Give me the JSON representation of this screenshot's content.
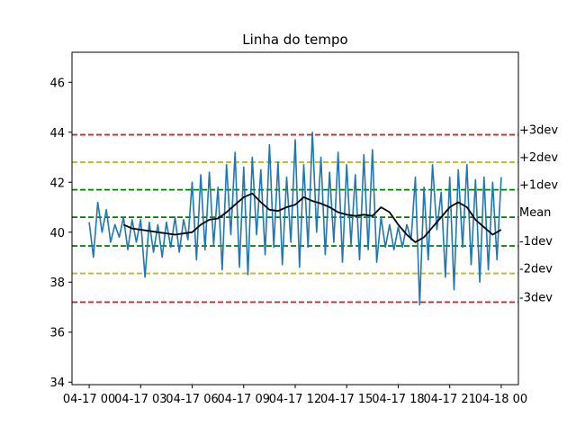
{
  "chart_data": {
    "type": "line",
    "title": "Linha do tempo",
    "xlabel": "",
    "ylabel": "",
    "ylim": [
      33.9,
      47.2
    ],
    "xlim": [
      "2024-04-16 23:00",
      "2024-04-18 01:00"
    ],
    "grid": false,
    "x_tick_labels": [
      "04-17 00",
      "04-17 03",
      "04-17 06",
      "04-17 09",
      "04-17 12",
      "04-17 15",
      "04-17 18",
      "04-17 21",
      "04-18 00"
    ],
    "x_tick_values_hours": [
      0,
      3,
      6,
      9,
      12,
      15,
      18,
      21,
      24
    ],
    "y_ticks": [
      34,
      36,
      38,
      40,
      42,
      44,
      46
    ],
    "colors": {
      "raw": "#1f77b4",
      "moving_average": "#000000",
      "band_3": "#d62728",
      "band_2": "#bcbd22",
      "band_1": "#2ca02c"
    },
    "series": [
      {
        "name": "",
        "kind": "raw",
        "x_hours": [
          0,
          0.25,
          0.5,
          0.75,
          1,
          1.25,
          1.5,
          1.75,
          2,
          2.25,
          2.5,
          2.75,
          3,
          3.25,
          3.5,
          3.75,
          4,
          4.25,
          4.5,
          4.75,
          5,
          5.25,
          5.5,
          5.75,
          6,
          6.25,
          6.5,
          6.75,
          7,
          7.25,
          7.5,
          7.75,
          8,
          8.25,
          8.5,
          8.75,
          9,
          9.25,
          9.5,
          9.75,
          10,
          10.25,
          10.5,
          10.75,
          11,
          11.25,
          11.5,
          11.75,
          12,
          12.25,
          12.5,
          12.75,
          13,
          13.25,
          13.5,
          13.75,
          14,
          14.25,
          14.5,
          14.75,
          15,
          15.25,
          15.5,
          15.75,
          16,
          16.25,
          16.5,
          16.75,
          17,
          17.25,
          17.5,
          17.75,
          18,
          18.25,
          18.5,
          18.75,
          19,
          19.25,
          19.5,
          19.75,
          20,
          20.25,
          20.5,
          20.75,
          21,
          21.25,
          21.5,
          21.75,
          22,
          22.25,
          22.5,
          22.75,
          23,
          23.25,
          23.5,
          23.75,
          24
        ],
        "values": [
          40.4,
          39.0,
          41.2,
          40.0,
          40.9,
          39.6,
          40.3,
          39.8,
          40.6,
          39.3,
          40.5,
          39.6,
          40.5,
          38.2,
          40.4,
          39.2,
          40.3,
          39.0,
          40.4,
          39.4,
          40.6,
          39.2,
          40.5,
          39.7,
          42.0,
          38.9,
          42.3,
          39.3,
          42.4,
          39.5,
          41.8,
          38.5,
          42.7,
          39.9,
          43.2,
          38.6,
          42.6,
          38.3,
          43.0,
          39.9,
          42.5,
          39.1,
          43.5,
          39.4,
          42.8,
          38.7,
          42.2,
          39.6,
          43.7,
          38.6,
          42.7,
          39.4,
          44.0,
          40.0,
          43.0,
          39.1,
          42.4,
          39.6,
          43.2,
          38.8,
          42.7,
          39.5,
          42.3,
          38.9,
          43.1,
          39.3,
          43.3,
          38.8,
          40.6,
          39.4,
          40.3,
          39.3,
          40.2,
          39.4,
          40.3,
          39.7,
          42.2,
          37.1,
          41.8,
          38.9,
          42.7,
          40.1,
          41.6,
          38.2,
          42.2,
          37.7,
          42.5,
          39.4,
          42.7,
          38.7,
          42.1,
          38.0,
          42.2,
          38.5,
          42.0,
          38.9,
          42.2
        ],
        "data_labels": []
      },
      {
        "name": "",
        "kind": "moving_average",
        "x_hours": [
          2.0,
          2.5,
          3.0,
          3.5,
          4.0,
          4.5,
          5.0,
          5.5,
          6.0,
          6.5,
          7.0,
          7.5,
          8.0,
          8.5,
          9.0,
          9.5,
          10.0,
          10.5,
          11.0,
          11.5,
          12.0,
          12.5,
          13.0,
          13.5,
          14.0,
          14.5,
          15.0,
          15.5,
          16.0,
          16.5,
          17.0,
          17.5,
          18.0,
          18.5,
          19.0,
          19.5,
          20.0,
          20.5,
          21.0,
          21.5,
          22.0,
          22.5,
          23.0,
          23.5,
          24.0
        ],
        "values": [
          40.3,
          40.15,
          40.1,
          40.05,
          40.0,
          39.95,
          39.9,
          39.95,
          40.0,
          40.3,
          40.5,
          40.55,
          40.8,
          41.1,
          41.4,
          41.55,
          41.2,
          40.9,
          40.85,
          41.0,
          41.1,
          41.4,
          41.25,
          41.15,
          41.0,
          40.8,
          40.7,
          40.65,
          40.7,
          40.65,
          41.0,
          40.8,
          40.3,
          39.9,
          39.6,
          39.8,
          40.2,
          40.6,
          41.0,
          41.2,
          41.0,
          40.5,
          40.2,
          39.9,
          40.1
        ]
      }
    ],
    "reference_lines": [
      {
        "label": "+3dev",
        "y": 43.9,
        "color": "#d62728"
      },
      {
        "label": "+2dev",
        "y": 42.8,
        "color": "#bcbd22"
      },
      {
        "label": "+1dev",
        "y": 41.7,
        "color": "#008000"
      },
      {
        "label": "Mean",
        "y": 40.6,
        "color": "#008000"
      },
      {
        "label": "-1dev",
        "y": 39.45,
        "color": "#008000"
      },
      {
        "label": "-2dev",
        "y": 38.35,
        "color": "#bcbd22"
      },
      {
        "label": "-3dev",
        "y": 37.2,
        "color": "#d62728"
      }
    ]
  }
}
